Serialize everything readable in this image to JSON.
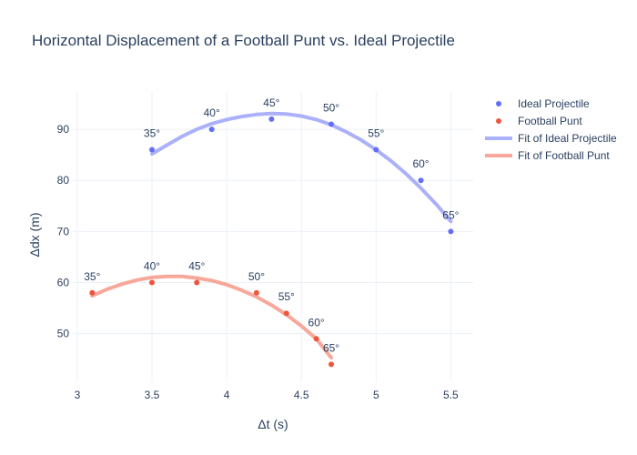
{
  "chart_data": {
    "type": "scatter",
    "title": "Horizontal Displacement of a Football Punt vs. Ideal Projectile",
    "xlabel": "Δt (s)",
    "ylabel": "Δdx (m)",
    "xlim": [
      2.97,
      5.65
    ],
    "ylim": [
      40.5,
      97.5
    ],
    "xticks": [
      3,
      3.5,
      4,
      4.5,
      5,
      5.5
    ],
    "yticks": [
      50,
      60,
      70,
      80,
      90
    ],
    "grid": true,
    "legend_position": "top-right",
    "series": [
      {
        "name": "Ideal Projectile",
        "kind": "markers",
        "color": "#636efa",
        "x": [
          3.5,
          3.9,
          4.3,
          4.7,
          5.0,
          5.3,
          5.5
        ],
        "y": [
          86,
          90,
          92,
          91,
          86,
          80,
          70
        ],
        "labels": [
          "35°",
          "40°",
          "45°",
          "50°",
          "55°",
          "60°",
          "65°"
        ]
      },
      {
        "name": "Football Punt",
        "kind": "markers",
        "color": "#ef553b",
        "x": [
          3.1,
          3.5,
          3.8,
          4.2,
          4.4,
          4.6,
          4.7
        ],
        "y": [
          58,
          60,
          60,
          58,
          54,
          49,
          44
        ],
        "labels": [
          "35°",
          "40°",
          "45°",
          "50°",
          "55°",
          "60°",
          "65°"
        ]
      },
      {
        "name": "Fit of Ideal Projectile",
        "kind": "line",
        "color": "#abb1f9",
        "x": [
          3.5,
          3.6,
          3.7,
          3.8,
          3.9,
          4.0,
          4.1,
          4.2,
          4.3,
          4.4,
          4.5,
          4.6,
          4.7,
          4.8,
          4.9,
          5.0,
          5.1,
          5.2,
          5.3,
          5.4,
          5.5
        ],
        "y": [
          85.2,
          86.9,
          88.6,
          90.0,
          91.1,
          91.9,
          92.5,
          92.9,
          93.1,
          93.0,
          92.6,
          91.9,
          90.9,
          89.5,
          87.9,
          86.0,
          83.8,
          81.3,
          78.5,
          75.4,
          72.0
        ]
      },
      {
        "name": "Fit of Football Punt",
        "kind": "line",
        "color": "#f7a89a",
        "x": [
          3.1,
          3.2,
          3.3,
          3.4,
          3.5,
          3.6,
          3.7,
          3.8,
          3.9,
          4.0,
          4.1,
          4.2,
          4.3,
          4.4,
          4.5,
          4.6,
          4.7
        ],
        "y": [
          57.4,
          58.7,
          59.7,
          60.5,
          61.0,
          61.2,
          61.2,
          60.9,
          60.4,
          59.6,
          58.5,
          57.2,
          55.6,
          53.7,
          51.5,
          49.0,
          45.3
        ]
      }
    ]
  }
}
